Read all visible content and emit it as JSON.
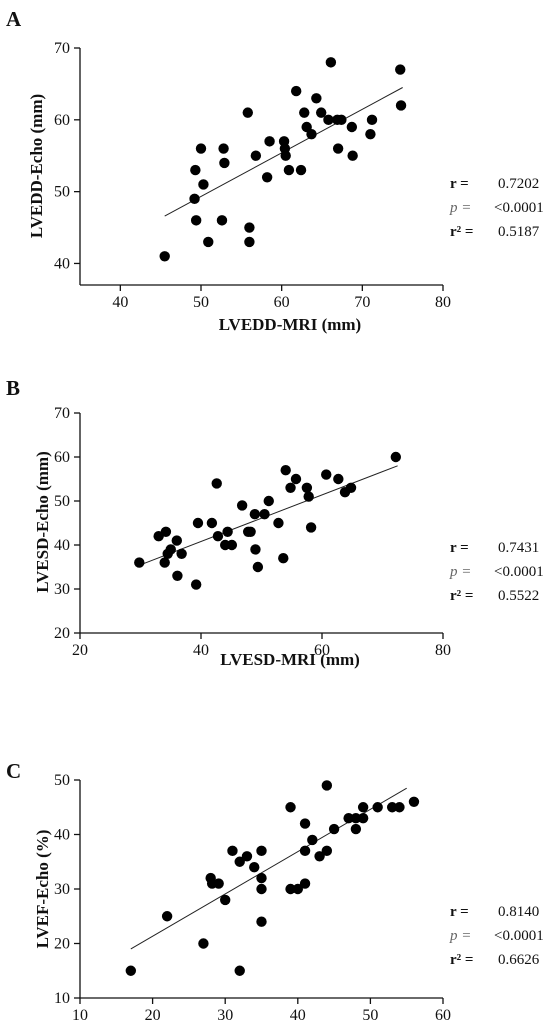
{
  "chart_data": [
    {
      "type": "scatter",
      "panel_label": "A",
      "xlabel": "LVEDD-MRI (mm)",
      "ylabel": "LVEDD-Echo (mm)",
      "xlim": [
        35,
        80
      ],
      "ylim": [
        37,
        70
      ],
      "xticks": [
        "40",
        "50",
        "60",
        "70",
        "80"
      ],
      "yticks": [
        "40",
        "50",
        "60",
        "70"
      ],
      "grid": false,
      "regression": {
        "x": [
          45.5,
          75
        ],
        "y": [
          46.6,
          64.5
        ]
      },
      "stats": {
        "r_label": "r =",
        "r": "0.7202",
        "p_label": "p =",
        "p": "<0.0001",
        "r2_label": "r² =",
        "r2": "0.5187"
      },
      "points": [
        [
          45.5,
          41
        ],
        [
          49.2,
          49
        ],
        [
          49.3,
          53
        ],
        [
          49.4,
          46
        ],
        [
          50,
          56
        ],
        [
          50.3,
          51
        ],
        [
          50.9,
          43
        ],
        [
          52.6,
          46
        ],
        [
          52.8,
          56
        ],
        [
          52.9,
          54
        ],
        [
          55.8,
          61
        ],
        [
          56,
          45
        ],
        [
          56,
          43
        ],
        [
          56.8,
          55
        ],
        [
          58.2,
          52
        ],
        [
          58.5,
          57
        ],
        [
          60.3,
          57
        ],
        [
          60.4,
          56
        ],
        [
          60.5,
          55
        ],
        [
          60.9,
          53
        ],
        [
          61.8,
          64
        ],
        [
          62.4,
          53
        ],
        [
          62.8,
          61
        ],
        [
          63.1,
          59
        ],
        [
          63.7,
          58
        ],
        [
          64.3,
          63
        ],
        [
          64.9,
          61
        ],
        [
          65.8,
          60
        ],
        [
          66.1,
          68
        ],
        [
          66.9,
          60
        ],
        [
          67,
          56
        ],
        [
          67.4,
          60
        ],
        [
          68.8,
          55
        ],
        [
          68.7,
          59
        ],
        [
          71.2,
          60
        ],
        [
          71,
          58
        ],
        [
          74.7,
          67
        ],
        [
          74.8,
          62
        ]
      ]
    },
    {
      "type": "scatter",
      "panel_label": "B",
      "xlabel": "LVESD-MRI (mm)",
      "ylabel": "LVESD-Echo (mm)",
      "xlim": [
        20,
        80
      ],
      "ylim": [
        20,
        70
      ],
      "xticks": [
        "20",
        "40",
        "60",
        "80"
      ],
      "yticks": [
        "20",
        "30",
        "40",
        "50",
        "60",
        "70"
      ],
      "grid": false,
      "regression": {
        "x": [
          30,
          72.5
        ],
        "y": [
          35.5,
          58
        ]
      },
      "stats": {
        "r_label": "r =",
        "r": "0.7431",
        "p_label": "p =",
        "p": "<0.0001",
        "r2_label": "r² =",
        "r2": "0.5522"
      },
      "points": [
        [
          29.8,
          36
        ],
        [
          33,
          42
        ],
        [
          34,
          36
        ],
        [
          34.2,
          43
        ],
        [
          34.5,
          38
        ],
        [
          35,
          39
        ],
        [
          36,
          41
        ],
        [
          36.1,
          33
        ],
        [
          36.8,
          38
        ],
        [
          39.2,
          31
        ],
        [
          39.5,
          45
        ],
        [
          41.8,
          45
        ],
        [
          42.6,
          54
        ],
        [
          42.8,
          42
        ],
        [
          44,
          40
        ],
        [
          44.4,
          43
        ],
        [
          45.1,
          40
        ],
        [
          46.8,
          49
        ],
        [
          47.8,
          43
        ],
        [
          48.2,
          43
        ],
        [
          49,
          39
        ],
        [
          48.9,
          47
        ],
        [
          49.4,
          35
        ],
        [
          50.5,
          47
        ],
        [
          51.2,
          50
        ],
        [
          52.8,
          45
        ],
        [
          53.6,
          37
        ],
        [
          54,
          57
        ],
        [
          54.8,
          53
        ],
        [
          55.7,
          55
        ],
        [
          57.5,
          53
        ],
        [
          57.8,
          51
        ],
        [
          58.2,
          44
        ],
        [
          60.7,
          56
        ],
        [
          62.7,
          55
        ],
        [
          63.8,
          52
        ],
        [
          64.8,
          53
        ],
        [
          72.2,
          60
        ]
      ]
    },
    {
      "type": "scatter",
      "panel_label": "C",
      "xlabel": "",
      "ylabel": "LVEF-Echo (%)",
      "xlim": [
        10,
        60
      ],
      "ylim": [
        10,
        50
      ],
      "xticks": [
        "10",
        "20",
        "30",
        "40",
        "50",
        "60"
      ],
      "yticks": [
        "10",
        "20",
        "30",
        "40",
        "50"
      ],
      "grid": false,
      "regression": {
        "x": [
          17,
          55
        ],
        "y": [
          19,
          48.5
        ]
      },
      "stats": {
        "r_label": "r =",
        "r": "0.8140",
        "p_label": "p =",
        "p": "<0.0001",
        "r2_label": "r² =",
        "r2": "0.6626"
      },
      "points": [
        [
          17,
          15
        ],
        [
          22,
          25
        ],
        [
          27,
          20
        ],
        [
          28,
          32
        ],
        [
          28.2,
          31
        ],
        [
          29.1,
          31
        ],
        [
          30,
          28
        ],
        [
          31,
          37
        ],
        [
          32,
          35
        ],
        [
          32,
          15
        ],
        [
          33,
          36
        ],
        [
          34,
          34
        ],
        [
          35,
          37
        ],
        [
          35,
          32
        ],
        [
          35,
          30
        ],
        [
          35,
          24
        ],
        [
          39,
          45
        ],
        [
          39,
          30
        ],
        [
          40,
          30
        ],
        [
          41,
          42
        ],
        [
          41,
          37
        ],
        [
          41,
          31
        ],
        [
          42,
          39
        ],
        [
          43,
          36
        ],
        [
          44,
          37
        ],
        [
          44,
          49
        ],
        [
          45,
          41
        ],
        [
          47,
          43
        ],
        [
          48,
          43
        ],
        [
          48,
          41
        ],
        [
          49,
          43
        ],
        [
          49,
          45
        ],
        [
          51,
          45
        ],
        [
          53,
          45
        ],
        [
          54,
          45
        ],
        [
          56,
          46
        ]
      ]
    }
  ]
}
